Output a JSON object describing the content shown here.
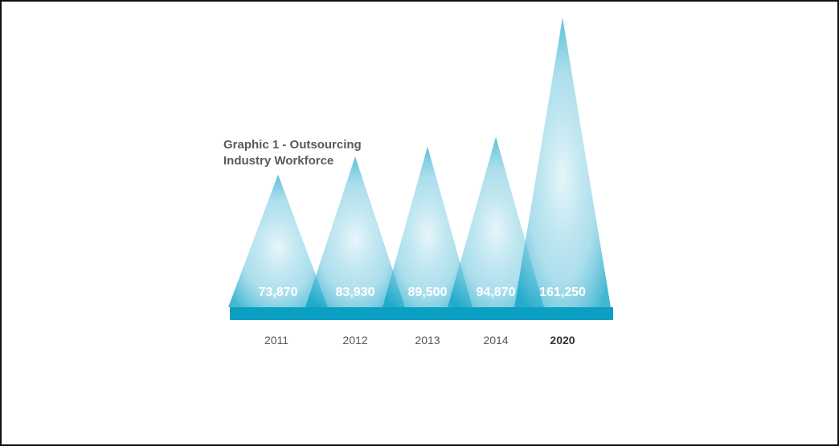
{
  "chart_data": {
    "type": "bar",
    "title_lines": [
      "Graphic 1 - Outsourcing",
      "Industry Workforce"
    ],
    "categories": [
      "2011",
      "2012",
      "2013",
      "2014",
      "2020"
    ],
    "values": [
      73870,
      83930,
      89500,
      94870,
      161250
    ],
    "value_labels": [
      "73,870",
      "83,930",
      "89,500",
      "94,870",
      "161,250"
    ],
    "emphasized_category": "2020",
    "bar_shape": "triangle",
    "xlabel": "",
    "ylabel": "",
    "grid": false,
    "colors": {
      "peak_light": "#c9eaf3",
      "base_dark": "#0fa3c6",
      "baseline": "#0b9fc4"
    }
  }
}
